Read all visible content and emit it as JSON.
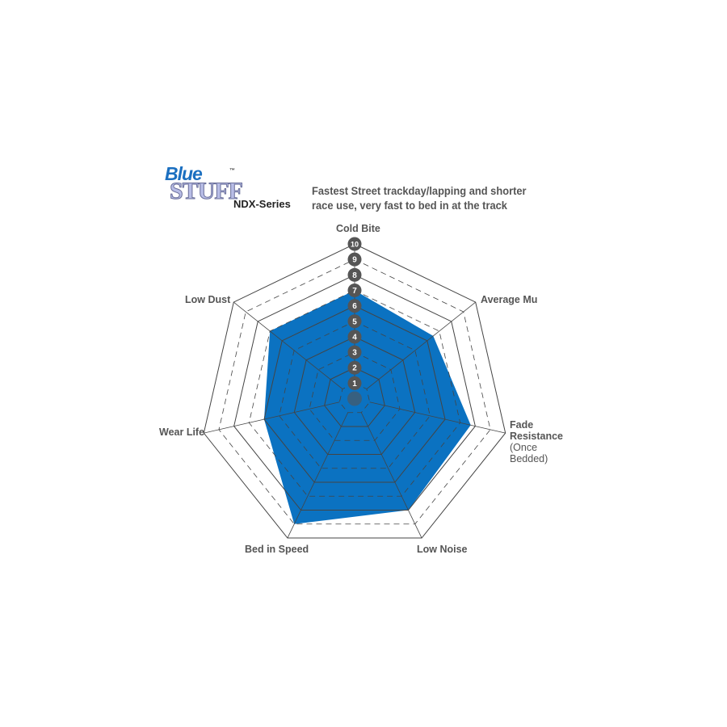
{
  "logo": {
    "line1": "Blue",
    "line2": "STUFF",
    "tm": "™"
  },
  "series_name": "NDX-Series",
  "subtitle_lines": [
    "Fastest Street trackday/lapping and shorter",
    "race use, very fast to bed in at the track"
  ],
  "chart_data": {
    "type": "radar",
    "axes": [
      "Cold Bite",
      "Average Mu",
      "Fade Resistance",
      "Low Noise",
      "Bed in Speed",
      "Wear Life",
      "Low Dust"
    ],
    "axis_sublabels": {
      "Fade Resistance": "(Once Bedded)"
    },
    "values": [
      7,
      6.5,
      7.7,
      8,
      9,
      6,
      7
    ],
    "range": [
      0,
      10
    ],
    "scale_ticks": [
      1,
      2,
      3,
      4,
      5,
      6,
      7,
      8,
      9,
      10
    ],
    "fill_color": "#0b72c1",
    "grid_color": "#444444",
    "badge_color": "#555555"
  }
}
